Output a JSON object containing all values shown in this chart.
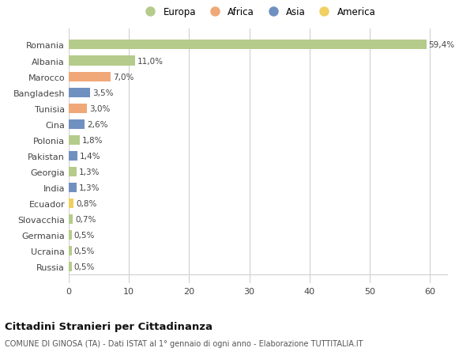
{
  "countries": [
    "Romania",
    "Albania",
    "Marocco",
    "Bangladesh",
    "Tunisia",
    "Cina",
    "Polonia",
    "Pakistan",
    "Georgia",
    "India",
    "Ecuador",
    "Slovacchia",
    "Germania",
    "Ucraina",
    "Russia"
  ],
  "values": [
    59.4,
    11.0,
    7.0,
    3.5,
    3.0,
    2.6,
    1.8,
    1.4,
    1.3,
    1.3,
    0.8,
    0.7,
    0.5,
    0.5,
    0.5
  ],
  "labels": [
    "59,4%",
    "11,0%",
    "7,0%",
    "3,5%",
    "3,0%",
    "2,6%",
    "1,8%",
    "1,4%",
    "1,3%",
    "1,3%",
    "0,8%",
    "0,7%",
    "0,5%",
    "0,5%",
    "0,5%"
  ],
  "continents": [
    "Europa",
    "Europa",
    "Africa",
    "Asia",
    "Africa",
    "Asia",
    "Europa",
    "Asia",
    "Europa",
    "Asia",
    "America",
    "Europa",
    "Europa",
    "Europa",
    "Europa"
  ],
  "continent_colors": {
    "Europa": "#b5cb8b",
    "Africa": "#f0a878",
    "Asia": "#7090c0",
    "America": "#f0d060"
  },
  "legend_order": [
    "Europa",
    "Africa",
    "Asia",
    "America"
  ],
  "title": "Cittadini Stranieri per Cittadinanza",
  "subtitle": "COMUNE DI GINOSA (TA) - Dati ISTAT al 1° gennaio di ogni anno - Elaborazione TUTTITALIA.IT",
  "xlim": [
    0,
    63
  ],
  "xticks": [
    0,
    10,
    20,
    30,
    40,
    50,
    60
  ],
  "bg_color": "#ffffff",
  "grid_color": "#d0d0d0",
  "bar_height": 0.6
}
